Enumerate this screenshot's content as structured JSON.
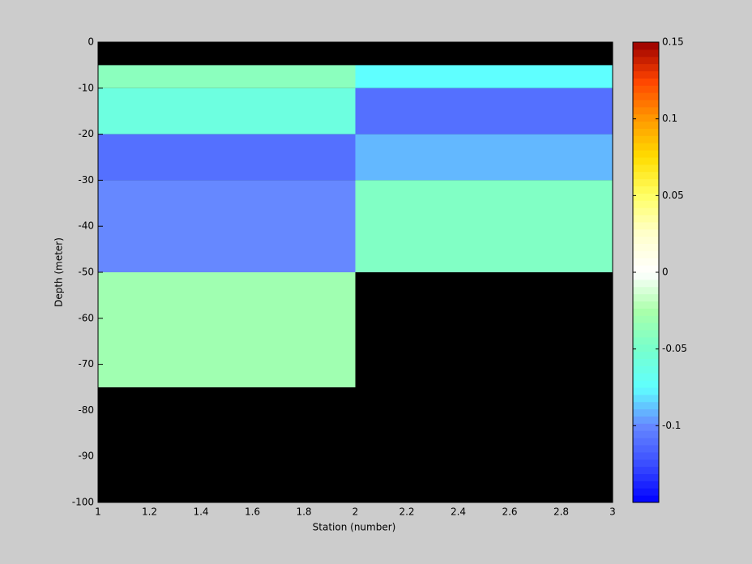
{
  "chart_data": {
    "type": "heatmap",
    "xlabel": "Station (number)",
    "ylabel": "Depth (meter)",
    "xedges": [
      1,
      2,
      3
    ],
    "yedges": [
      0,
      -5,
      -10,
      -20,
      -30,
      -50,
      -75,
      -100
    ],
    "values": [
      [
        null,
        null
      ],
      [
        -0.04,
        -0.075
      ],
      [
        -0.06,
        -0.11
      ],
      [
        -0.11,
        -0.09
      ],
      [
        -0.1,
        -0.045
      ],
      [
        -0.03,
        null
      ],
      [
        null,
        null
      ]
    ],
    "xlim": [
      1,
      3
    ],
    "ylim": [
      -100,
      0
    ],
    "xticks": [
      1,
      1.2,
      1.4,
      1.6,
      1.8,
      2,
      2.2,
      2.4,
      2.6,
      2.8,
      3
    ],
    "yticks": [
      0,
      -10,
      -20,
      -30,
      -40,
      -50,
      -60,
      -70,
      -80,
      -90,
      -100
    ],
    "clim": [
      -0.15,
      0.15
    ],
    "cticks": [
      0.15,
      0.1,
      0.05,
      0,
      -0.05,
      -0.1
    ],
    "nan_color": "#000000",
    "colormap": [
      "#0000ff",
      "#3a4dff",
      "#6688ff",
      "#5fffff",
      "#77ffcc",
      "#aaffaa",
      "#ffffff",
      "#ffffcc",
      "#ffff66",
      "#ffdd00",
      "#ff9900",
      "#ff4400",
      "#990000"
    ]
  }
}
